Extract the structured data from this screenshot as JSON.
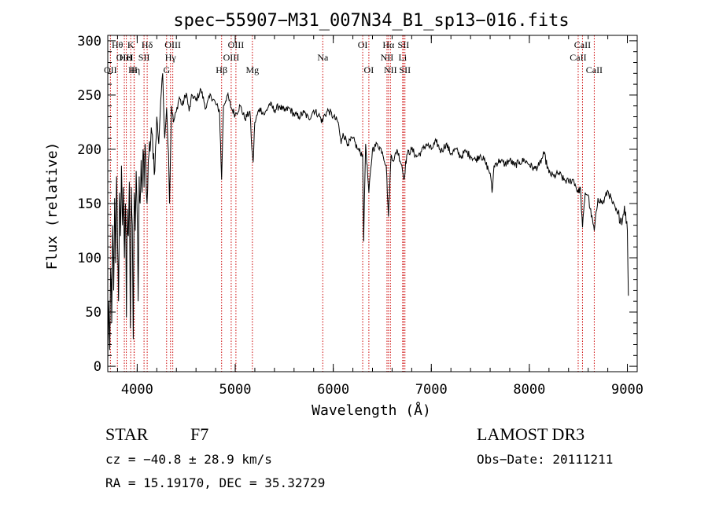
{
  "chart_data": {
    "type": "line",
    "title": "spec−55907−M31_007N34_B1_sp13−016.fits",
    "xlabel": "Wavelength (Å)",
    "ylabel": "Flux (relative)",
    "xlim": [
      3700,
      9100
    ],
    "ylim": [
      -5,
      305
    ],
    "xticks": [
      4000,
      5000,
      6000,
      7000,
      8000,
      9000
    ],
    "yticks": [
      0,
      50,
      100,
      150,
      200,
      250,
      300
    ],
    "grid": false,
    "colors": {
      "line": "#000000",
      "marker": "#cc0000",
      "axis": "#000000"
    },
    "series": [
      {
        "name": "flux",
        "points": [
          [
            3700,
            5
          ],
          [
            3710,
            60
          ],
          [
            3720,
            15
          ],
          [
            3730,
            90
          ],
          [
            3740,
            40
          ],
          [
            3750,
            130
          ],
          [
            3760,
            70
          ],
          [
            3770,
            155
          ],
          [
            3780,
            95
          ],
          [
            3790,
            175
          ],
          [
            3800,
            110
          ],
          [
            3810,
            60
          ],
          [
            3820,
            160
          ],
          [
            3830,
            120
          ],
          [
            3840,
            185
          ],
          [
            3850,
            130
          ],
          [
            3860,
            165
          ],
          [
            3870,
            100
          ],
          [
            3880,
            150
          ],
          [
            3890,
            45
          ],
          [
            3900,
            145
          ],
          [
            3910,
            120
          ],
          [
            3920,
            170
          ],
          [
            3930,
            35
          ],
          [
            3940,
            165
          ],
          [
            3950,
            130
          ],
          [
            3960,
            25
          ],
          [
            3970,
            160
          ],
          [
            3980,
            125
          ],
          [
            3990,
            180
          ],
          [
            4000,
            140
          ],
          [
            4010,
            60
          ],
          [
            4020,
            175
          ],
          [
            4030,
            150
          ],
          [
            4040,
            190
          ],
          [
            4050,
            160
          ],
          [
            4060,
            200
          ],
          [
            4070,
            165
          ],
          [
            4080,
            205
          ],
          [
            4100,
            150
          ],
          [
            4120,
            195
          ],
          [
            4150,
            215
          ],
          [
            4180,
            180
          ],
          [
            4200,
            230
          ],
          [
            4220,
            205
          ],
          [
            4240,
            245
          ],
          [
            4260,
            270
          ],
          [
            4280,
            210
          ],
          [
            4300,
            238
          ],
          [
            4320,
            195
          ],
          [
            4330,
            150
          ],
          [
            4350,
            240
          ],
          [
            4370,
            225
          ],
          [
            4400,
            235
          ],
          [
            4430,
            248
          ],
          [
            4460,
            240
          ],
          [
            4500,
            252
          ],
          [
            4530,
            235
          ],
          [
            4560,
            250
          ],
          [
            4600,
            245
          ],
          [
            4650,
            255
          ],
          [
            4700,
            238
          ],
          [
            4750,
            250
          ],
          [
            4800,
            242
          ],
          [
            4840,
            235
          ],
          [
            4861,
            172
          ],
          [
            4880,
            240
          ],
          [
            4920,
            250
          ],
          [
            4960,
            238
          ],
          [
            5000,
            232
          ],
          [
            5050,
            240
          ],
          [
            5100,
            228
          ],
          [
            5150,
            235
          ],
          [
            5170,
            200
          ],
          [
            5183,
            188
          ],
          [
            5200,
            225
          ],
          [
            5250,
            238
          ],
          [
            5300,
            232
          ],
          [
            5350,
            242
          ],
          [
            5400,
            236
          ],
          [
            5450,
            240
          ],
          [
            5500,
            235
          ],
          [
            5550,
            238
          ],
          [
            5600,
            232
          ],
          [
            5650,
            230
          ],
          [
            5700,
            234
          ],
          [
            5750,
            228
          ],
          [
            5800,
            236
          ],
          [
            5850,
            232
          ],
          [
            5890,
            225
          ],
          [
            5900,
            230
          ],
          [
            5950,
            236
          ],
          [
            6000,
            230
          ],
          [
            6050,
            225
          ],
          [
            6080,
            205
          ],
          [
            6100,
            215
          ],
          [
            6150,
            205
          ],
          [
            6200,
            210
          ],
          [
            6250,
            200
          ],
          [
            6300,
            195
          ],
          [
            6310,
            115
          ],
          [
            6330,
            205
          ],
          [
            6363,
            160
          ],
          [
            6400,
            200
          ],
          [
            6450,
            205
          ],
          [
            6500,
            198
          ],
          [
            6540,
            185
          ],
          [
            6563,
            138
          ],
          [
            6590,
            195
          ],
          [
            6620,
            190
          ],
          [
            6650,
            200
          ],
          [
            6700,
            185
          ],
          [
            6720,
            172
          ],
          [
            6750,
            195
          ],
          [
            6800,
            200
          ],
          [
            6850,
            193
          ],
          [
            6900,
            198
          ],
          [
            6950,
            205
          ],
          [
            7000,
            200
          ],
          [
            7050,
            207
          ],
          [
            7100,
            198
          ],
          [
            7150,
            205
          ],
          [
            7200,
            196
          ],
          [
            7250,
            200
          ],
          [
            7300,
            193
          ],
          [
            7350,
            198
          ],
          [
            7400,
            194
          ],
          [
            7450,
            190
          ],
          [
            7500,
            195
          ],
          [
            7550,
            188
          ],
          [
            7600,
            178
          ],
          [
            7620,
            160
          ],
          [
            7640,
            185
          ],
          [
            7700,
            190
          ],
          [
            7750,
            186
          ],
          [
            7800,
            190
          ],
          [
            7850,
            185
          ],
          [
            7900,
            188
          ],
          [
            7950,
            190
          ],
          [
            8000,
            186
          ],
          [
            8050,
            182
          ],
          [
            8100,
            185
          ],
          [
            8150,
            196
          ],
          [
            8200,
            178
          ],
          [
            8250,
            175
          ],
          [
            8300,
            178
          ],
          [
            8350,
            172
          ],
          [
            8400,
            170
          ],
          [
            8450,
            172
          ],
          [
            8498,
            160
          ],
          [
            8520,
            165
          ],
          [
            8542,
            128
          ],
          [
            8570,
            160
          ],
          [
            8600,
            158
          ],
          [
            8620,
            145
          ],
          [
            8662,
            125
          ],
          [
            8700,
            155
          ],
          [
            8750,
            150
          ],
          [
            8800,
            162
          ],
          [
            8850,
            150
          ],
          [
            8900,
            140
          ],
          [
            8950,
            135
          ],
          [
            8970,
            148
          ],
          [
            9000,
            125
          ],
          [
            9010,
            65
          ]
        ]
      }
    ],
    "lines": [
      {
        "label": "OII",
        "x": 3727,
        "row": 2
      },
      {
        "label": "Hθ",
        "x": 3798,
        "row": 0
      },
      {
        "label": "OIII",
        "x": 3869,
        "row": 1
      },
      {
        "label": "HeI",
        "x": 3889,
        "row": 1
      },
      {
        "label": "K",
        "x": 3934,
        "row": 0
      },
      {
        "label": "Hη",
        "x": 3970,
        "row": 2
      },
      {
        "label": "SII",
        "x": 4070,
        "row": 1
      },
      {
        "label": "H",
        "x": 3968,
        "row": 2
      },
      {
        "label": "Hδ",
        "x": 4102,
        "row": 0
      },
      {
        "label": "G",
        "x": 4300,
        "row": 2
      },
      {
        "label": "Hγ",
        "x": 4340,
        "row": 1
      },
      {
        "label": "OIII",
        "x": 4363,
        "row": 0
      },
      {
        "label": "Hβ",
        "x": 4861,
        "row": 2
      },
      {
        "label": "OIII",
        "x": 4959,
        "row": 1
      },
      {
        "label": "OIII",
        "x": 5007,
        "row": 0
      },
      {
        "label": "Mg",
        "x": 5175,
        "row": 2
      },
      {
        "label": "Na",
        "x": 5893,
        "row": 1
      },
      {
        "label": "OI",
        "x": 6300,
        "row": 0
      },
      {
        "label": "OI",
        "x": 6363,
        "row": 2
      },
      {
        "label": "NII",
        "x": 6548,
        "row": 1
      },
      {
        "label": "Hα",
        "x": 6563,
        "row": 0
      },
      {
        "label": "NII",
        "x": 6583,
        "row": 2
      },
      {
        "label": "SII",
        "x": 6716,
        "row": 0
      },
      {
        "label": "Li",
        "x": 6708,
        "row": 1
      },
      {
        "label": "SII",
        "x": 6731,
        "row": 2
      },
      {
        "label": "CaII",
        "x": 8498,
        "row": 1
      },
      {
        "label": "CaII",
        "x": 8542,
        "row": 0
      },
      {
        "label": "CaII",
        "x": 8662,
        "row": 2
      }
    ]
  },
  "info": {
    "class": "STAR",
    "subclass": "F7",
    "survey": "LAMOST DR3",
    "cz": "cz = −40.8 ± 28.9 km/s",
    "obsdate": "Obs−Date: 20111211",
    "radec": "RA =  15.19170, DEC =  35.32729"
  }
}
